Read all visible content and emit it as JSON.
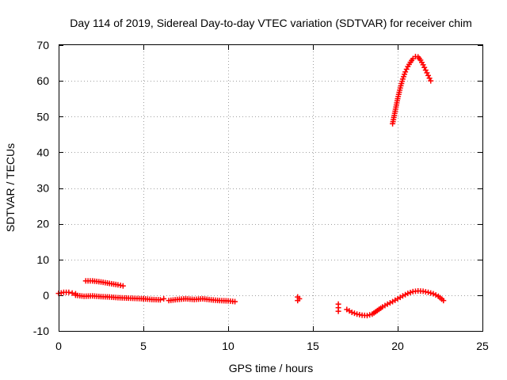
{
  "chart_data": {
    "type": "scatter",
    "title": "Day 114 of 2019, Sidereal Day-to-day VTEC variation (SDTVAR) for receiver chim",
    "xlabel": "GPS time / hours",
    "ylabel": "SDTVAR / TECUs",
    "xlim": [
      0,
      25
    ],
    "ylim": [
      -10,
      70
    ],
    "xticks": [
      0,
      5,
      10,
      15,
      20,
      25
    ],
    "yticks": [
      -10,
      0,
      10,
      20,
      30,
      40,
      50,
      60,
      70
    ],
    "grid": true,
    "marker": "plus",
    "color": "#ff0000",
    "series": [
      {
        "name": "SDTVAR",
        "segments": [
          {
            "x": [
              0.0,
              0.3,
              0.6,
              0.8,
              1.0
            ],
            "y": [
              0.5,
              0.8,
              0.8,
              0.6,
              0.4
            ]
          },
          {
            "x": [
              1.0,
              1.5,
              2.0,
              2.5,
              3.0,
              3.5,
              4.0,
              4.5,
              5.0
            ],
            "y": [
              0.0,
              -0.3,
              -0.2,
              -0.4,
              -0.5,
              -0.7,
              -0.8,
              -0.9,
              -1.0
            ]
          },
          {
            "x": [
              1.6,
              2.0,
              2.5,
              3.0,
              3.5,
              3.8
            ],
            "y": [
              4.0,
              4.0,
              3.7,
              3.3,
              2.9,
              2.6
            ]
          },
          {
            "x": [
              5.0,
              5.5,
              6.0,
              6.2
            ],
            "y": [
              -1.0,
              -1.2,
              -1.3,
              -1.0
            ]
          },
          {
            "x": [
              6.5,
              7.0,
              7.5,
              8.0,
              8.5,
              9.0,
              9.5,
              10.0,
              10.4
            ],
            "y": [
              -1.5,
              -1.2,
              -1.0,
              -1.2,
              -1.0,
              -1.3,
              -1.5,
              -1.6,
              -1.8
            ]
          },
          {
            "x": [
              14.1,
              14.1,
              14.2
            ],
            "y": [
              -0.5,
              -1.5,
              -1.0
            ]
          },
          {
            "x": [
              16.5,
              16.5,
              16.5
            ],
            "y": [
              -2.5,
              -3.5,
              -4.5
            ]
          },
          {
            "x": [
              17.0,
              17.3,
              17.6,
              17.9,
              18.2,
              18.5,
              18.8,
              19.1,
              19.4,
              19.7,
              20.0,
              20.3,
              20.6,
              20.9,
              21.2,
              21.5,
              21.8,
              22.1,
              22.4,
              22.7
            ],
            "y": [
              -4.0,
              -4.8,
              -5.3,
              -5.6,
              -5.7,
              -5.3,
              -4.3,
              -3.3,
              -2.5,
              -1.8,
              -1.0,
              -0.2,
              0.5,
              1.0,
              1.2,
              1.1,
              0.8,
              0.4,
              -0.3,
              -1.5
            ]
          },
          {
            "x": [
              19.7,
              19.85,
              20.0,
              20.15,
              20.3,
              20.45,
              20.6,
              20.75,
              20.9,
              21.05,
              21.2,
              21.35,
              21.5,
              21.65,
              21.8,
              21.95
            ],
            "y": [
              48.0,
              51.5,
              55.0,
              58.0,
              60.5,
              62.5,
              64.0,
              65.2,
              66.2,
              66.8,
              66.7,
              65.8,
              64.5,
              63.0,
              61.5,
              60.0
            ]
          }
        ]
      }
    ]
  }
}
